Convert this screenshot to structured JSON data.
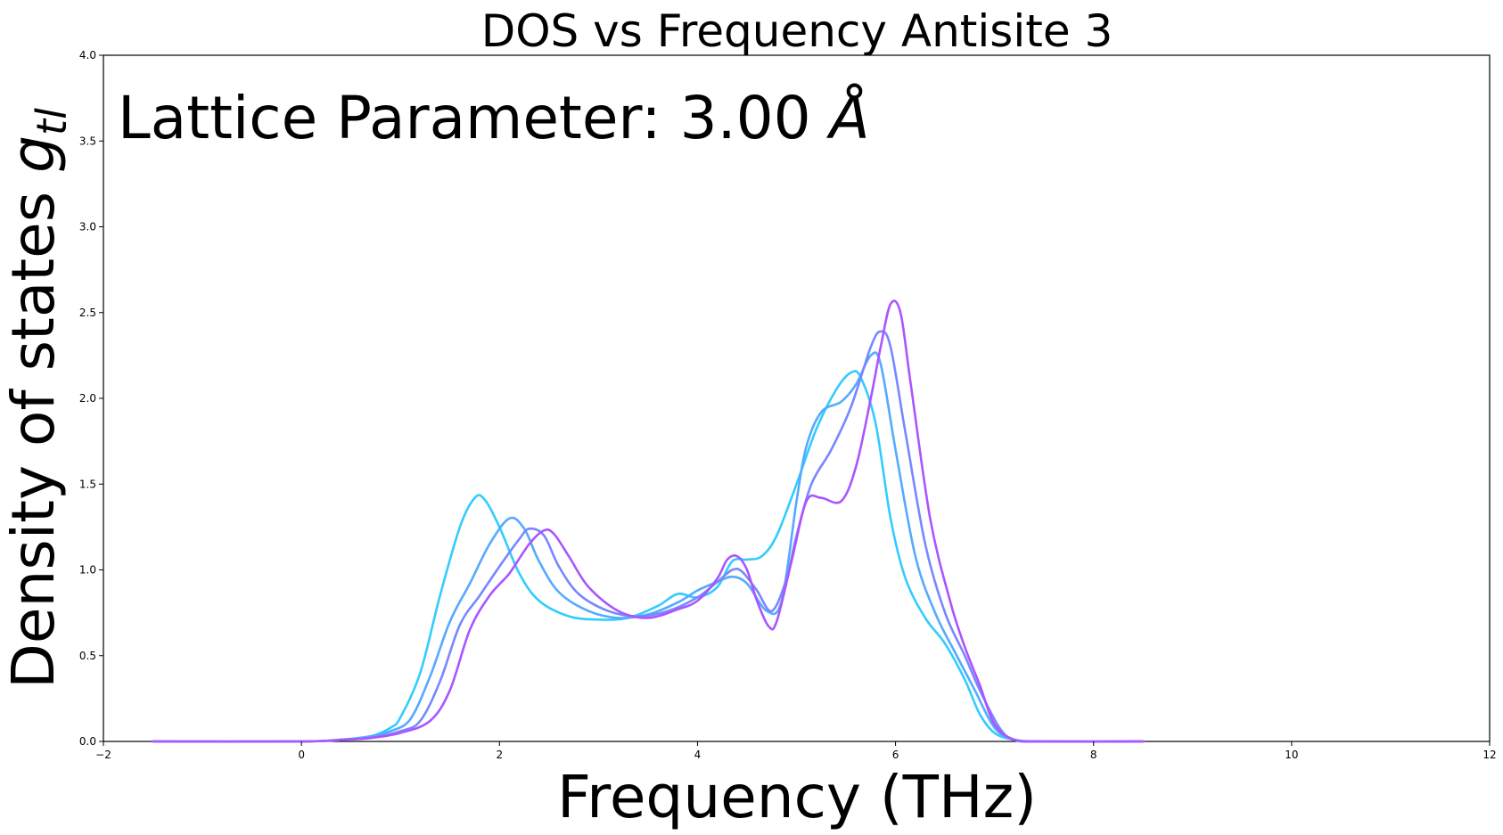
{
  "chart_data": {
    "type": "line",
    "title": "DOS vs Frequency  Antisite 3",
    "xlabel": "Frequency (THz)",
    "ylabel_main": "Density of states ",
    "ylabel_symbol": "g",
    "ylabel_subscript": "tl",
    "annotation_text": "Lattice Parameter: 3.00 ",
    "annotation_unit": "Å",
    "xlim": [
      -2,
      12
    ],
    "ylim": [
      0,
      4
    ],
    "xticks": [
      -2,
      0,
      2,
      4,
      6,
      8,
      10,
      12
    ],
    "yticks": [
      0.0,
      0.5,
      1.0,
      1.5,
      2.0,
      2.5,
      3.0,
      3.5,
      4.0
    ],
    "xtick_labels": [
      "−2",
      "0",
      "2",
      "4",
      "6",
      "8",
      "10",
      "12"
    ],
    "ytick_labels": [
      "0.0",
      "0.5",
      "1.0",
      "1.5",
      "2.0",
      "2.5",
      "3.0",
      "3.5",
      "4.0"
    ],
    "grid": false,
    "series": [
      {
        "color": "#33ccff",
        "points": [
          [
            -1.5,
            0
          ],
          [
            0,
            0
          ],
          [
            0.4,
            0.01
          ],
          [
            0.7,
            0.03
          ],
          [
            0.9,
            0.08
          ],
          [
            1.0,
            0.14
          ],
          [
            1.2,
            0.4
          ],
          [
            1.4,
            0.85
          ],
          [
            1.6,
            1.25
          ],
          [
            1.75,
            1.42
          ],
          [
            1.85,
            1.41
          ],
          [
            2.0,
            1.25
          ],
          [
            2.2,
            0.98
          ],
          [
            2.4,
            0.82
          ],
          [
            2.7,
            0.73
          ],
          [
            3.0,
            0.71
          ],
          [
            3.3,
            0.72
          ],
          [
            3.6,
            0.79
          ],
          [
            3.8,
            0.86
          ],
          [
            4.0,
            0.84
          ],
          [
            4.2,
            0.9
          ],
          [
            4.35,
            1.05
          ],
          [
            4.5,
            1.06
          ],
          [
            4.65,
            1.08
          ],
          [
            4.8,
            1.2
          ],
          [
            5.0,
            1.5
          ],
          [
            5.2,
            1.82
          ],
          [
            5.4,
            2.05
          ],
          [
            5.55,
            2.15
          ],
          [
            5.65,
            2.12
          ],
          [
            5.8,
            1.85
          ],
          [
            5.95,
            1.3
          ],
          [
            6.1,
            0.95
          ],
          [
            6.3,
            0.72
          ],
          [
            6.5,
            0.57
          ],
          [
            6.7,
            0.36
          ],
          [
            6.85,
            0.16
          ],
          [
            7.0,
            0.05
          ],
          [
            7.2,
            0.01
          ],
          [
            7.5,
            0
          ],
          [
            8.5,
            0
          ]
        ]
      },
      {
        "color": "#55aaff",
        "points": [
          [
            -1.5,
            0
          ],
          [
            0,
            0
          ],
          [
            0.4,
            0.01
          ],
          [
            0.7,
            0.03
          ],
          [
            0.9,
            0.06
          ],
          [
            1.1,
            0.13
          ],
          [
            1.3,
            0.38
          ],
          [
            1.5,
            0.7
          ],
          [
            1.7,
            0.92
          ],
          [
            1.9,
            1.15
          ],
          [
            2.1,
            1.3
          ],
          [
            2.25,
            1.24
          ],
          [
            2.4,
            1.05
          ],
          [
            2.6,
            0.87
          ],
          [
            2.9,
            0.76
          ],
          [
            3.2,
            0.72
          ],
          [
            3.5,
            0.74
          ],
          [
            3.8,
            0.81
          ],
          [
            4.0,
            0.88
          ],
          [
            4.2,
            0.93
          ],
          [
            4.35,
            0.96
          ],
          [
            4.5,
            0.92
          ],
          [
            4.7,
            0.76
          ],
          [
            4.85,
            0.82
          ],
          [
            5.0,
            1.4
          ],
          [
            5.1,
            1.72
          ],
          [
            5.25,
            1.92
          ],
          [
            5.45,
            1.98
          ],
          [
            5.6,
            2.08
          ],
          [
            5.75,
            2.25
          ],
          [
            5.85,
            2.2
          ],
          [
            6.0,
            1.7
          ],
          [
            6.2,
            1.08
          ],
          [
            6.4,
            0.75
          ],
          [
            6.6,
            0.52
          ],
          [
            6.8,
            0.3
          ],
          [
            7.0,
            0.08
          ],
          [
            7.2,
            0.01
          ],
          [
            7.5,
            0
          ],
          [
            8.5,
            0
          ]
        ]
      },
      {
        "color": "#7788ff",
        "points": [
          [
            -1.5,
            0
          ],
          [
            0,
            0
          ],
          [
            0.4,
            0.01
          ],
          [
            0.7,
            0.02
          ],
          [
            1.0,
            0.06
          ],
          [
            1.2,
            0.12
          ],
          [
            1.4,
            0.35
          ],
          [
            1.6,
            0.68
          ],
          [
            1.8,
            0.85
          ],
          [
            2.0,
            1.02
          ],
          [
            2.2,
            1.18
          ],
          [
            2.3,
            1.24
          ],
          [
            2.45,
            1.2
          ],
          [
            2.6,
            1.02
          ],
          [
            2.8,
            0.86
          ],
          [
            3.1,
            0.76
          ],
          [
            3.4,
            0.73
          ],
          [
            3.7,
            0.76
          ],
          [
            4.0,
            0.84
          ],
          [
            4.2,
            0.93
          ],
          [
            4.35,
            1.0
          ],
          [
            4.45,
            0.99
          ],
          [
            4.6,
            0.88
          ],
          [
            4.75,
            0.76
          ],
          [
            4.9,
            0.95
          ],
          [
            5.0,
            1.2
          ],
          [
            5.15,
            1.5
          ],
          [
            5.35,
            1.7
          ],
          [
            5.55,
            1.95
          ],
          [
            5.75,
            2.3
          ],
          [
            5.85,
            2.39
          ],
          [
            5.95,
            2.3
          ],
          [
            6.1,
            1.8
          ],
          [
            6.3,
            1.15
          ],
          [
            6.5,
            0.75
          ],
          [
            6.7,
            0.5
          ],
          [
            6.85,
            0.3
          ],
          [
            7.05,
            0.08
          ],
          [
            7.2,
            0.01
          ],
          [
            7.5,
            0
          ],
          [
            8.5,
            0
          ]
        ]
      },
      {
        "color": "#aa55ff",
        "points": [
          [
            -1.5,
            0
          ],
          [
            0,
            0
          ],
          [
            0.4,
            0.01
          ],
          [
            0.7,
            0.02
          ],
          [
            1.0,
            0.05
          ],
          [
            1.3,
            0.12
          ],
          [
            1.5,
            0.3
          ],
          [
            1.7,
            0.65
          ],
          [
            1.9,
            0.85
          ],
          [
            2.1,
            0.98
          ],
          [
            2.3,
            1.15
          ],
          [
            2.45,
            1.23
          ],
          [
            2.55,
            1.21
          ],
          [
            2.7,
            1.08
          ],
          [
            2.9,
            0.9
          ],
          [
            3.2,
            0.76
          ],
          [
            3.5,
            0.72
          ],
          [
            3.8,
            0.77
          ],
          [
            4.0,
            0.82
          ],
          [
            4.2,
            0.95
          ],
          [
            4.3,
            1.06
          ],
          [
            4.4,
            1.08
          ],
          [
            4.5,
            1.0
          ],
          [
            4.6,
            0.82
          ],
          [
            4.72,
            0.67
          ],
          [
            4.8,
            0.7
          ],
          [
            4.95,
            1.05
          ],
          [
            5.1,
            1.4
          ],
          [
            5.25,
            1.42
          ],
          [
            5.45,
            1.4
          ],
          [
            5.6,
            1.6
          ],
          [
            5.75,
            2.0
          ],
          [
            5.85,
            2.3
          ],
          [
            5.95,
            2.55
          ],
          [
            6.05,
            2.5
          ],
          [
            6.15,
            2.1
          ],
          [
            6.35,
            1.3
          ],
          [
            6.55,
            0.82
          ],
          [
            6.7,
            0.55
          ],
          [
            6.85,
            0.33
          ],
          [
            7.0,
            0.1
          ],
          [
            7.2,
            0.01
          ],
          [
            7.5,
            0
          ],
          [
            8.5,
            0
          ]
        ]
      }
    ]
  }
}
